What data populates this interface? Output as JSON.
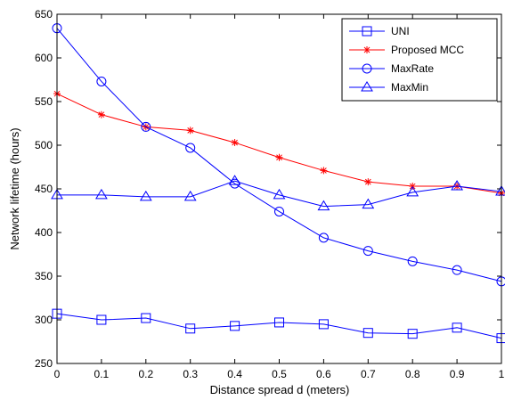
{
  "chart_data": {
    "type": "line",
    "title": "",
    "xlabel": "Distance spread d (meters)",
    "ylabel": "Network lifetime (hours)",
    "xlim": [
      0,
      1
    ],
    "ylim": [
      250,
      650
    ],
    "x_ticks": [
      "0",
      "0.1",
      "0.2",
      "0.3",
      "0.4",
      "0.5",
      "0.6",
      "0.7",
      "0.8",
      "0.9",
      "1"
    ],
    "y_ticks": [
      "250",
      "300",
      "350",
      "400",
      "450",
      "500",
      "550",
      "600",
      "650"
    ],
    "x": [
      0,
      0.1,
      0.2,
      0.3,
      0.4,
      0.5,
      0.6,
      0.7,
      0.8,
      0.9,
      1.0
    ],
    "grid": false,
    "legend_position": "top-right",
    "series": [
      {
        "name": "UNI",
        "color": "#0000ff",
        "marker": "square",
        "values": [
          307,
          300,
          302,
          290,
          293,
          297,
          295,
          285,
          284,
          291,
          279
        ]
      },
      {
        "name": "Proposed MCC",
        "color": "#ff0000",
        "marker": "star",
        "values": [
          559,
          535,
          521,
          517,
          503,
          486,
          471,
          458,
          453,
          453,
          445
        ]
      },
      {
        "name": "MaxRate",
        "color": "#0000ff",
        "marker": "circle",
        "values": [
          634,
          573,
          521,
          497,
          456,
          424,
          394,
          379,
          367,
          357,
          344
        ]
      },
      {
        "name": "MaxMin",
        "color": "#0000ff",
        "marker": "triangle",
        "values": [
          443,
          443,
          441,
          441,
          459,
          443,
          430,
          432,
          446,
          453,
          447
        ]
      }
    ]
  }
}
